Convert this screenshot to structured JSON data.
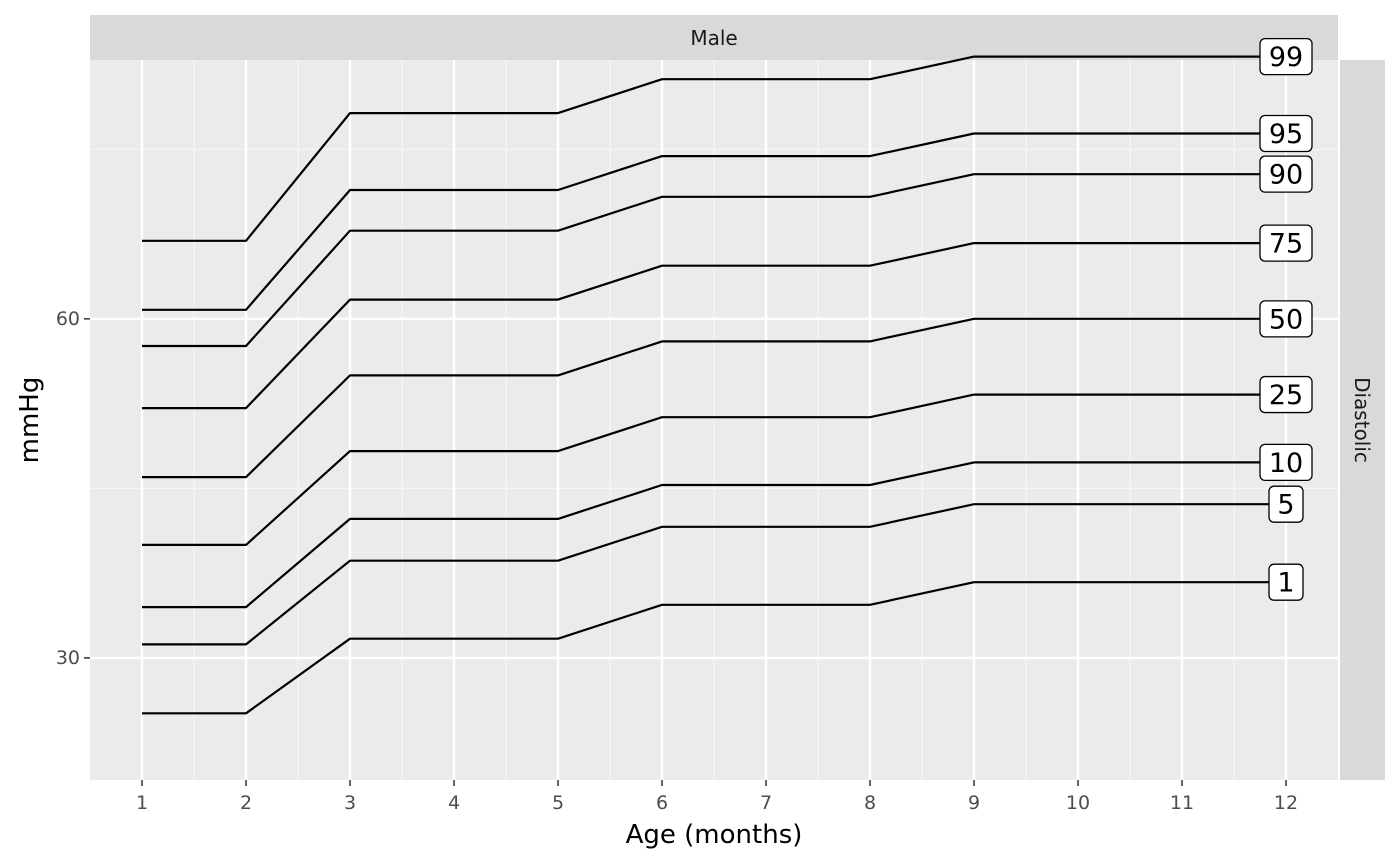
{
  "chart_data": {
    "type": "line",
    "facet_col_label": "Male",
    "facet_row_label": "Diastolic",
    "xlabel": "Age (months)",
    "ylabel": "mmHg",
    "xlim": [
      0.5,
      12.5
    ],
    "ylim": [
      19.2,
      82.9
    ],
    "x_ticks": [
      1,
      2,
      3,
      4,
      5,
      6,
      7,
      8,
      9,
      10,
      11,
      12
    ],
    "y_ticks": [
      30,
      60
    ],
    "grid": true,
    "x": [
      1,
      2,
      3,
      4,
      5,
      6,
      7,
      8,
      9,
      10,
      11,
      12
    ],
    "series": [
      {
        "name": "99",
        "values": [
          66.9,
          66.9,
          78.2,
          78.2,
          78.2,
          81.2,
          81.2,
          81.2,
          83.2,
          83.2,
          83.2,
          83.2
        ]
      },
      {
        "name": "95",
        "values": [
          60.8,
          60.8,
          71.4,
          71.4,
          71.4,
          74.4,
          74.4,
          74.4,
          76.4,
          76.4,
          76.4,
          76.4
        ]
      },
      {
        "name": "90",
        "values": [
          57.6,
          57.6,
          67.8,
          67.8,
          67.8,
          70.8,
          70.8,
          70.8,
          72.8,
          72.8,
          72.8,
          72.8
        ]
      },
      {
        "name": "75",
        "values": [
          52.1,
          52.1,
          61.7,
          61.7,
          61.7,
          64.7,
          64.7,
          64.7,
          66.7,
          66.7,
          66.7,
          66.7
        ]
      },
      {
        "name": "50",
        "values": [
          46.0,
          46.0,
          55.0,
          55.0,
          55.0,
          58.0,
          58.0,
          58.0,
          60.0,
          60.0,
          60.0,
          60.0
        ]
      },
      {
        "name": "25",
        "values": [
          40.0,
          40.0,
          48.3,
          48.3,
          48.3,
          51.3,
          51.3,
          51.3,
          53.3,
          53.3,
          53.3,
          53.3
        ]
      },
      {
        "name": "10",
        "values": [
          34.5,
          34.5,
          42.3,
          42.3,
          42.3,
          45.3,
          45.3,
          45.3,
          47.3,
          47.3,
          47.3,
          47.3
        ]
      },
      {
        "name": "5",
        "values": [
          31.2,
          31.2,
          38.6,
          38.6,
          38.6,
          41.6,
          41.6,
          41.6,
          43.6,
          43.6,
          43.6,
          43.6
        ]
      },
      {
        "name": "1",
        "values": [
          25.1,
          25.1,
          31.7,
          31.7,
          31.7,
          34.7,
          34.7,
          34.7,
          36.7,
          36.7,
          36.7,
          36.7
        ]
      }
    ]
  }
}
